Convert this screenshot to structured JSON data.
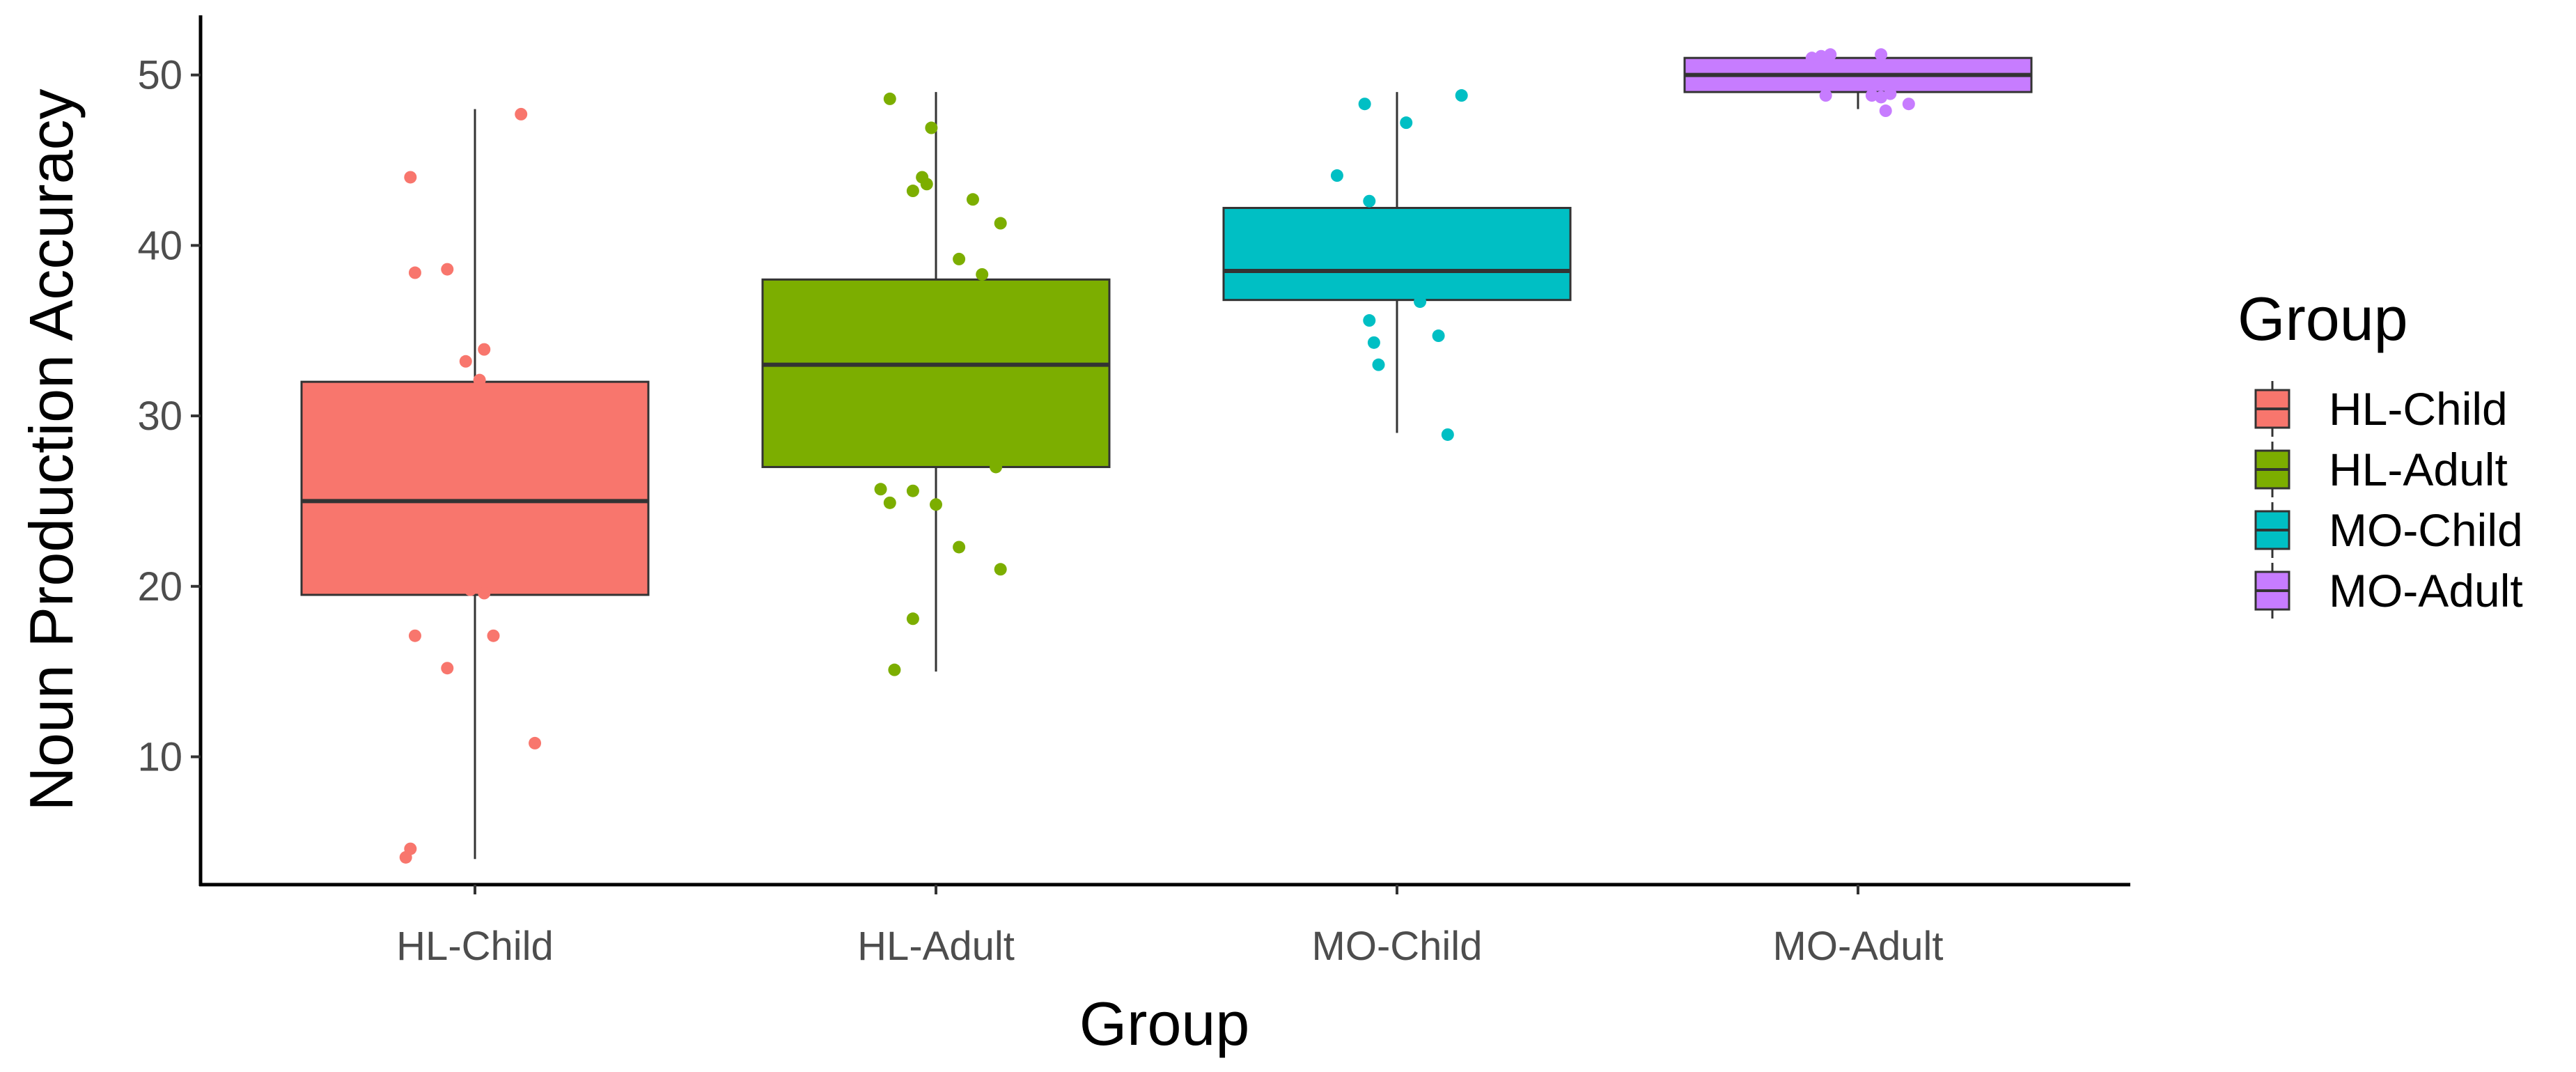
{
  "chart_data": {
    "type": "box",
    "xlabel": "Group",
    "ylabel": "Noun Production Accuracy",
    "categories": [
      "HL-Child",
      "HL-Adult",
      "MO-Child",
      "MO-Adult"
    ],
    "y_ticks": [
      10,
      20,
      30,
      40,
      50
    ],
    "ylim": [
      2.5,
      53.5
    ],
    "grid": false,
    "legend": {
      "title": "Group",
      "position": "right",
      "entries": [
        "HL-Child",
        "HL-Adult",
        "MO-Child",
        "MO-Adult"
      ]
    },
    "colors": [
      "#F8766D",
      "#7CAE00",
      "#00BFC4",
      "#C77CFF"
    ],
    "boxes": [
      {
        "group": "HL-Child",
        "whisker_low": 4,
        "q1": 19.5,
        "median": 25,
        "q3": 32,
        "whisker_high": 48
      },
      {
        "group": "HL-Adult",
        "whisker_low": 15,
        "q1": 27,
        "median": 33,
        "q3": 38,
        "whisker_high": 49
      },
      {
        "group": "MO-Child",
        "whisker_low": 29,
        "q1": 36.8,
        "median": 38.5,
        "q3": 42.2,
        "whisker_high": 49
      },
      {
        "group": "MO-Adult",
        "whisker_low": 48,
        "q1": 49,
        "median": 50,
        "q3": 51,
        "whisker_high": 51
      }
    ],
    "points": [
      {
        "group": "HL-Child",
        "values": [
          [
            -0.14,
            44
          ],
          [
            -0.13,
            38.4
          ],
          [
            -0.06,
            38.6
          ],
          [
            -0.02,
            33.2
          ],
          [
            0.01,
            32.1
          ],
          [
            0.02,
            33.9
          ],
          [
            0.02,
            19.6
          ],
          [
            -0.01,
            19.8
          ],
          [
            -0.13,
            17.1
          ],
          [
            0.04,
            17.1
          ],
          [
            -0.06,
            15.2
          ],
          [
            0.13,
            10.8
          ],
          [
            -0.14,
            4.6
          ],
          [
            -0.15,
            4.1
          ],
          [
            0.1,
            47.7
          ]
        ]
      },
      {
        "group": "HL-Adult",
        "values": [
          [
            -0.1,
            48.6
          ],
          [
            -0.01,
            46.9
          ],
          [
            -0.03,
            44
          ],
          [
            -0.05,
            43.2
          ],
          [
            -0.02,
            43.6
          ],
          [
            0.08,
            42.7
          ],
          [
            0.14,
            41.3
          ],
          [
            0.05,
            39.2
          ],
          [
            0.1,
            38.3
          ],
          [
            0.13,
            27
          ],
          [
            -0.12,
            25.7
          ],
          [
            -0.05,
            25.6
          ],
          [
            -0.1,
            24.9
          ],
          [
            0.0,
            24.8
          ],
          [
            0.05,
            22.3
          ],
          [
            0.14,
            21
          ],
          [
            -0.05,
            18.1
          ],
          [
            -0.09,
            15.1
          ]
        ]
      },
      {
        "group": "MO-Child",
        "values": [
          [
            0.14,
            48.8
          ],
          [
            -0.07,
            48.3
          ],
          [
            0.02,
            47.2
          ],
          [
            -0.13,
            44.1
          ],
          [
            -0.06,
            42.6
          ],
          [
            0.05,
            36.7
          ],
          [
            -0.06,
            35.6
          ],
          [
            0.09,
            34.7
          ],
          [
            -0.05,
            34.3
          ],
          [
            -0.04,
            33
          ],
          [
            0.11,
            28.9
          ]
        ]
      },
      {
        "group": "MO-Adult",
        "values": [
          [
            -0.08,
            51.1
          ],
          [
            -0.1,
            51
          ],
          [
            -0.06,
            51.2
          ],
          [
            0.05,
            51.2
          ],
          [
            -0.07,
            48.8
          ],
          [
            0.03,
            48.8
          ],
          [
            0.05,
            48.7
          ],
          [
            0.07,
            48.9
          ],
          [
            0.06,
            47.9
          ],
          [
            0.11,
            48.3
          ],
          [
            0.09,
            49.5
          ]
        ]
      }
    ]
  }
}
